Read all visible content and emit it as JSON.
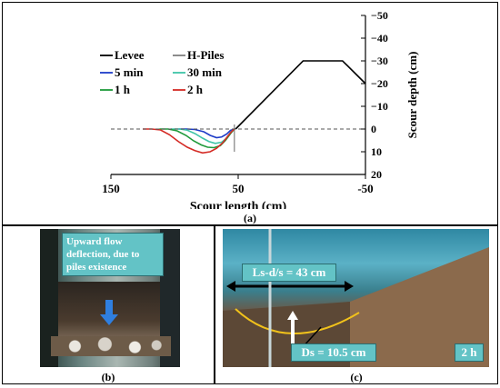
{
  "panel_a": {
    "caption": "(a)",
    "chart_data": {
      "type": "line",
      "xlabel": "Scour length (cm)",
      "ylabel": "Scour depth (cm)",
      "xlim": [
        150,
        -50
      ],
      "ylim": [
        20,
        -50
      ],
      "x_ticks": [
        150,
        50,
        -50
      ],
      "y_ticks": [
        -50,
        -40,
        -30,
        -20,
        -10,
        0,
        10,
        20
      ],
      "y_axis_side": "right",
      "legend_placement": "top-left",
      "series": [
        {
          "name": "Levee",
          "color": "#000000",
          "dashed": false,
          "x": [
            52,
            -1,
            -17,
            -32,
            -50
          ],
          "y": [
            0,
            -30,
            -30,
            -30,
            -20
          ]
        },
        {
          "name": "H-Piles",
          "color": "#808080",
          "dashed": false,
          "x": [
            53,
            53
          ],
          "y": [
            -2,
            10
          ]
        },
        {
          "name": "5 min",
          "color": "#1e3cc8",
          "dashed": false,
          "x": [
            97,
            90,
            84,
            77,
            72,
            67,
            63,
            59,
            56,
            53
          ],
          "y": [
            0,
            0,
            0.2,
            1.2,
            2.8,
            3.8,
            3.5,
            2.2,
            0.6,
            0
          ]
        },
        {
          "name": "30 min",
          "color": "#3fc4a8",
          "dashed": false,
          "x": [
            103,
            96,
            90,
            84,
            78,
            73,
            68,
            63,
            59,
            56,
            53
          ],
          "y": [
            0,
            0,
            0.5,
            2,
            4,
            5.5,
            6.3,
            5.8,
            4,
            1.5,
            0
          ]
        },
        {
          "name": "1 h",
          "color": "#1f9a3b",
          "dashed": false,
          "x": [
            112,
            105,
            98,
            91,
            85,
            79,
            74,
            69,
            64,
            60,
            56,
            53
          ],
          "y": [
            0,
            0,
            0.8,
            2.8,
            5.2,
            7,
            8,
            8.2,
            7.3,
            5,
            2,
            0
          ]
        },
        {
          "name": "2 h",
          "color": "#d42a24",
          "dashed": false,
          "x": [
            125,
            118,
            111,
            104,
            97,
            90,
            84,
            78,
            72,
            67,
            62,
            58,
            55,
            53
          ],
          "y": [
            0,
            0,
            0.4,
            2.5,
            5.5,
            8,
            9.5,
            10.5,
            10,
            8.5,
            6,
            3,
            1,
            0
          ]
        },
        {
          "name": "",
          "color": "#555555",
          "dashed": true,
          "x": [
            150,
            -50
          ],
          "y": [
            0,
            0
          ]
        }
      ]
    }
  },
  "panel_b": {
    "caption": "(b)",
    "annotation": "Upward flow deflection, due to piles existence"
  },
  "panel_c": {
    "caption": "(c)",
    "ls_label": "Ls-d/s = 43 cm",
    "ds_label": "Ds = 10.5 cm",
    "time_label": "2 h"
  }
}
